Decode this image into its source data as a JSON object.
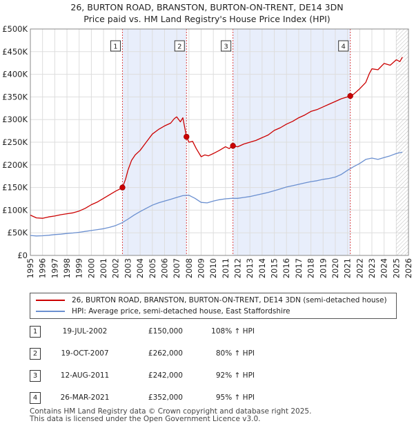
{
  "chart_data": {
    "type": "line",
    "title": "26, BURTON ROAD, BRANSTON, BURTON-ON-TRENT, DE14 3DN",
    "subtitle": "Price paid vs. HM Land Registry's House Price Index (HPI)",
    "xlabel": "",
    "ylabel": "",
    "xlim": [
      1995,
      2026
    ],
    "ylim": [
      0,
      500000
    ],
    "x_ticks": [
      1995,
      1996,
      1997,
      1998,
      1999,
      2000,
      2001,
      2002,
      2003,
      2004,
      2005,
      2006,
      2007,
      2008,
      2009,
      2010,
      2011,
      2012,
      2013,
      2014,
      2015,
      2016,
      2017,
      2018,
      2019,
      2020,
      2021,
      2022,
      2023,
      2024,
      2025,
      2026
    ],
    "y_ticks": [
      {
        "value": 0,
        "label": "£0"
      },
      {
        "value": 50000,
        "label": "£50K"
      },
      {
        "value": 100000,
        "label": "£100K"
      },
      {
        "value": 150000,
        "label": "£150K"
      },
      {
        "value": 200000,
        "label": "£200K"
      },
      {
        "value": 250000,
        "label": "£250K"
      },
      {
        "value": 300000,
        "label": "£300K"
      },
      {
        "value": 350000,
        "label": "£350K"
      },
      {
        "value": 400000,
        "label": "£400K"
      },
      {
        "value": 450000,
        "label": "£450K"
      },
      {
        "value": 500000,
        "label": "£500K"
      }
    ],
    "grid": true,
    "shaded_ranges": [
      [
        2002.55,
        2007.8
      ],
      [
        2011.61,
        2021.23
      ]
    ],
    "forecast_start": 2025.0,
    "series": [
      {
        "name": "26, BURTON ROAD, BRANSTON, BURTON-ON-TRENT, DE14 3DN (semi-detached house)",
        "color": "#cc0000",
        "x": [
          1995.0,
          1995.5,
          1996.0,
          1996.5,
          1997.0,
          1997.5,
          1998.0,
          1998.5,
          1999.0,
          1999.5,
          2000.0,
          2000.5,
          2001.0,
          2001.5,
          2002.0,
          2002.3,
          2002.55,
          2002.8,
          2003.0,
          2003.3,
          2003.6,
          2004.0,
          2004.5,
          2005.0,
          2005.5,
          2006.0,
          2006.5,
          2006.8,
          2007.0,
          2007.3,
          2007.5,
          2007.8,
          2008.0,
          2008.3,
          2008.6,
          2009.0,
          2009.3,
          2009.6,
          2010.0,
          2010.5,
          2011.0,
          2011.3,
          2011.61,
          2012.0,
          2012.5,
          2013.0,
          2013.5,
          2014.0,
          2014.5,
          2015.0,
          2015.5,
          2016.0,
          2016.5,
          2017.0,
          2017.5,
          2018.0,
          2018.5,
          2019.0,
          2019.5,
          2020.0,
          2020.5,
          2021.0,
          2021.23,
          2021.5,
          2022.0,
          2022.5,
          2022.8,
          2023.0,
          2023.5,
          2024.0,
          2024.5,
          2025.0,
          2025.3,
          2025.5
        ],
        "values": [
          89000,
          83000,
          82000,
          85000,
          87000,
          90000,
          92000,
          94000,
          98000,
          104000,
          112000,
          118000,
          126000,
          134000,
          142000,
          146000,
          150000,
          168000,
          188000,
          210000,
          222000,
          232000,
          250000,
          268000,
          278000,
          286000,
          292000,
          302000,
          306000,
          295000,
          304000,
          262000,
          250000,
          252000,
          236000,
          218000,
          222000,
          220000,
          225000,
          232000,
          240000,
          236000,
          242000,
          240000,
          246000,
          250000,
          254000,
          260000,
          266000,
          276000,
          282000,
          290000,
          296000,
          304000,
          310000,
          318000,
          322000,
          328000,
          334000,
          340000,
          346000,
          350000,
          352000,
          356000,
          368000,
          382000,
          402000,
          412000,
          410000,
          424000,
          420000,
          432000,
          428000,
          438000
        ]
      },
      {
        "name": "HPI: Average price, semi-detached house, East Staffordshire",
        "color": "#6a8fd0",
        "x": [
          1995.0,
          1995.5,
          1996.0,
          1996.5,
          1997.0,
          1997.5,
          1998.0,
          1998.5,
          1999.0,
          1999.5,
          2000.0,
          2000.5,
          2001.0,
          2001.5,
          2002.0,
          2002.5,
          2003.0,
          2003.5,
          2004.0,
          2004.5,
          2005.0,
          2005.5,
          2006.0,
          2006.5,
          2007.0,
          2007.5,
          2008.0,
          2008.5,
          2009.0,
          2009.5,
          2010.0,
          2010.5,
          2011.0,
          2011.5,
          2012.0,
          2012.5,
          2013.0,
          2013.5,
          2014.0,
          2014.5,
          2015.0,
          2015.5,
          2016.0,
          2016.5,
          2017.0,
          2017.5,
          2018.0,
          2018.5,
          2019.0,
          2019.5,
          2020.0,
          2020.5,
          2021.0,
          2021.5,
          2022.0,
          2022.5,
          2023.0,
          2023.5,
          2024.0,
          2024.5,
          2025.0,
          2025.5
        ],
        "values": [
          44000,
          43000,
          43500,
          44500,
          46000,
          47000,
          48500,
          49500,
          51000,
          53000,
          55000,
          57000,
          59000,
          62000,
          66000,
          72000,
          80000,
          89000,
          97000,
          104000,
          111000,
          116000,
          120000,
          124000,
          128000,
          132000,
          133000,
          126000,
          117000,
          116000,
          120000,
          123000,
          125000,
          126000,
          126000,
          128000,
          130000,
          133000,
          136000,
          139000,
          143000,
          147000,
          151000,
          154000,
          157000,
          160000,
          163000,
          165000,
          168000,
          170000,
          173000,
          179000,
          188000,
          196000,
          203000,
          212000,
          215000,
          212000,
          216000,
          220000,
          225000,
          228000
        ]
      }
    ],
    "markers": [
      {
        "id": "1",
        "x": 2002.55,
        "y": 150000
      },
      {
        "id": "2",
        "x": 2007.8,
        "y": 262000
      },
      {
        "id": "3",
        "x": 2011.61,
        "y": 242000
      },
      {
        "id": "4",
        "x": 2021.23,
        "y": 352000
      }
    ]
  },
  "legend": {
    "red_label": "26, BURTON ROAD, BRANSTON, BURTON-ON-TRENT, DE14 3DN (semi-detached house)",
    "blue_label": "HPI: Average price, semi-detached house, East Staffordshire"
  },
  "transactions": [
    {
      "num": "1",
      "date": "19-JUL-2002",
      "price": "£150,000",
      "pct": "108% ↑ HPI"
    },
    {
      "num": "2",
      "date": "19-OCT-2007",
      "price": "£262,000",
      "pct": "80% ↑ HPI"
    },
    {
      "num": "3",
      "date": "12-AUG-2011",
      "price": "£242,000",
      "pct": "92% ↑ HPI"
    },
    {
      "num": "4",
      "date": "26-MAR-2021",
      "price": "£352,000",
      "pct": "95% ↑ HPI"
    }
  ],
  "footer": {
    "line1": "Contains HM Land Registry data © Crown copyright and database right 2025.",
    "line2": "This data is licensed under the Open Government Licence v3.0."
  },
  "colors": {
    "price_line": "#cc0000",
    "hpi_line": "#6a8fd0",
    "shade": "#e8eefb",
    "marker_line": "#dd4444"
  }
}
